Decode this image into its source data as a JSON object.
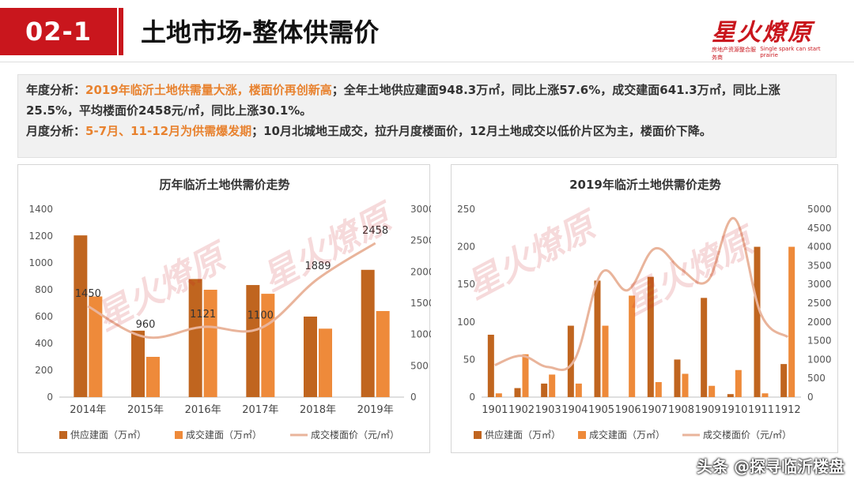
{
  "header": {
    "section": "02-1",
    "title": "土地市场-整体供需价",
    "logo_text": "星火燎原",
    "logo_sub_left": "房地产资源整合服务商",
    "logo_sub_right": "Single spark can start prairie"
  },
  "analysis": {
    "annual_label": "年度分析：",
    "annual_highlight": "2019年临沂土地供需量大涨，楼面价再创新高",
    "annual_text": "；全年土地供应建面948.3万㎡，同比上涨57.6%，成交建面641.3万㎡，同比上涨25.5%，平均楼面价2458元/㎡，同比上涨30.1%。",
    "monthly_label": "月度分析：",
    "monthly_highlight": "5-7月、11-12月为供需爆发期",
    "monthly_text": "；10月北城地王成交，拉升月度楼面价，12月土地成交以低价片区为主，楼面价下降。"
  },
  "colors": {
    "supply": "#c0651f",
    "deal": "#ee8a3a",
    "price": "#e9b49b",
    "brand": "#c9161d"
  },
  "chart_data": [
    {
      "type": "bar",
      "title": "历年临沂土地供需价走势",
      "categories": [
        "2014年",
        "2015年",
        "2016年",
        "2017年",
        "2018年",
        "2019年"
      ],
      "series": [
        {
          "name": "供应建面（万㎡）",
          "values": [
            1205,
            495,
            880,
            835,
            600,
            948.3
          ],
          "axis": "left",
          "kind": "bar"
        },
        {
          "name": "成交建面（万㎡）",
          "values": [
            750,
            300,
            800,
            770,
            510,
            641.3
          ],
          "axis": "left",
          "kind": "bar"
        },
        {
          "name": "成交楼面价（元/㎡）",
          "values": [
            1450,
            960,
            1121,
            1100,
            1889,
            2458
          ],
          "axis": "right",
          "kind": "line"
        }
      ],
      "price_labels": [
        "1450",
        "960",
        "1121",
        "1100",
        "1889",
        "2458"
      ],
      "ylim_left": [
        0,
        1400
      ],
      "yticks_left": [
        "0",
        "200",
        "400",
        "600",
        "800",
        "1000",
        "1200",
        "1400"
      ],
      "ylim_right": [
        0,
        3000
      ],
      "yticks_right": [
        "0",
        "500",
        "1000",
        "1500",
        "2000",
        "2500",
        "3000"
      ],
      "grid": false,
      "legend": "bottom"
    },
    {
      "type": "bar",
      "title": "2019年临沂土地供需价走势",
      "categories": [
        "1901",
        "1902",
        "1903",
        "1904",
        "1905",
        "1906",
        "1907",
        "1908",
        "1909",
        "1910",
        "1911",
        "1912"
      ],
      "series": [
        {
          "name": "供应建面（万㎡）",
          "values": [
            83,
            12,
            18,
            95,
            155,
            0,
            160,
            50,
            132,
            4,
            200,
            44
          ],
          "axis": "left",
          "kind": "bar"
        },
        {
          "name": "成交建面（万㎡）",
          "values": [
            5,
            57,
            30,
            18,
            95,
            135,
            20,
            31,
            15,
            36,
            5,
            200
          ],
          "axis": "left",
          "kind": "bar"
        },
        {
          "name": "成交楼面价（元/㎡）",
          "values": [
            850,
            1100,
            800,
            1000,
            3300,
            2850,
            3950,
            3400,
            3100,
            4750,
            2200,
            1600
          ],
          "axis": "right",
          "kind": "line"
        }
      ],
      "ylim_left": [
        0,
        250
      ],
      "yticks_left": [
        "0",
        "50",
        "100",
        "150",
        "200",
        "250"
      ],
      "ylim_right": [
        0,
        5000
      ],
      "yticks_right": [
        "0",
        "500",
        "1000",
        "1500",
        "2000",
        "2500",
        "3000",
        "3500",
        "4000",
        "4500",
        "5000"
      ],
      "grid": false,
      "legend": "bottom"
    }
  ],
  "footer": {
    "credit": "头条 @探寻临沂楼盘"
  }
}
